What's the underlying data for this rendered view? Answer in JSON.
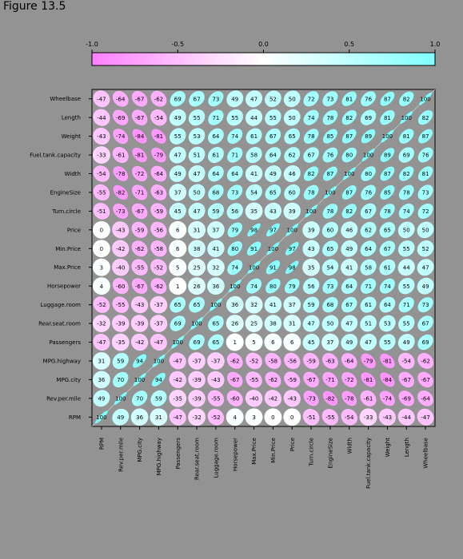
{
  "figure_title": "Figure 13.5",
  "colors": {
    "negative": "#ff80ff",
    "neutral": "#ffffff",
    "positive": "#80ffff",
    "background": "#939393"
  },
  "chart_data": {
    "type": "heatmap",
    "title": "",
    "colorkey": {
      "min": -1.0,
      "max": 1.0,
      "ticks": [
        "-1.0",
        "-0.5",
        "0.0",
        "0.5",
        "1.0"
      ]
    },
    "variables": [
      "RPM",
      "Rev.per.mile",
      "MPG.city",
      "MPG.highway",
      "Passengers",
      "Rear.seat.room",
      "Luggage.room",
      "Horsepower",
      "Max.Price",
      "Min.Price",
      "Price",
      "Turn.circle",
      "EngineSize",
      "Width",
      "Fuel.tank.capacity",
      "Weight",
      "Length",
      "Wheelbase"
    ],
    "rows": [
      "Wheelbase",
      "Length",
      "Weight",
      "Fuel.tank.capacity",
      "Width",
      "EngineSize",
      "Turn.circle",
      "Price",
      "Min.Price",
      "Max.Price",
      "Horsepower",
      "Luggage.room",
      "Rear.seat.room",
      "Passengers",
      "MPG.highway",
      "MPG.city",
      "Rev.per.mile",
      "RPM"
    ],
    "values": [
      [
        -47,
        -64,
        -67,
        -62,
        69,
        67,
        73,
        49,
        47,
        52,
        50,
        72,
        73,
        81,
        76,
        87,
        82,
        100
      ],
      [
        -44,
        -69,
        -67,
        -54,
        49,
        55,
        71,
        55,
        44,
        55,
        50,
        74,
        78,
        82,
        69,
        81,
        100,
        82
      ],
      [
        -43,
        -74,
        -84,
        -81,
        55,
        53,
        64,
        74,
        61,
        67,
        65,
        78,
        85,
        87,
        89,
        100,
        81,
        87
      ],
      [
        -33,
        -61,
        -81,
        -79,
        47,
        51,
        61,
        71,
        58,
        64,
        62,
        67,
        76,
        80,
        100,
        89,
        69,
        76
      ],
      [
        -54,
        -78,
        -72,
        -64,
        49,
        47,
        64,
        64,
        41,
        49,
        46,
        82,
        87,
        100,
        80,
        87,
        82,
        81
      ],
      [
        -55,
        -82,
        -71,
        -63,
        37,
        50,
        68,
        73,
        54,
        65,
        60,
        78,
        100,
        87,
        76,
        85,
        78,
        73
      ],
      [
        -51,
        -73,
        -67,
        -59,
        45,
        47,
        59,
        56,
        35,
        43,
        39,
        100,
        78,
        82,
        67,
        78,
        74,
        72
      ],
      [
        0,
        -43,
        -59,
        -56,
        6,
        31,
        37,
        79,
        98,
        97,
        100,
        39,
        60,
        46,
        62,
        65,
        50,
        50
      ],
      [
        0,
        -42,
        -62,
        -58,
        6,
        38,
        41,
        80,
        91,
        100,
        97,
        43,
        65,
        49,
        64,
        67,
        55,
        52
      ],
      [
        3,
        -40,
        -55,
        -52,
        5,
        25,
        32,
        74,
        100,
        91,
        98,
        35,
        54,
        41,
        58,
        61,
        44,
        47
      ],
      [
        4,
        -60,
        -67,
        -62,
        1,
        26,
        36,
        100,
        74,
        80,
        79,
        56,
        73,
        64,
        71,
        74,
        55,
        49
      ],
      [
        -52,
        -55,
        -43,
        -37,
        65,
        65,
        100,
        36,
        32,
        41,
        37,
        59,
        68,
        67,
        61,
        64,
        71,
        73
      ],
      [
        -32,
        -39,
        -39,
        -37,
        69,
        100,
        65,
        26,
        25,
        38,
        31,
        47,
        50,
        47,
        51,
        53,
        55,
        67
      ],
      [
        -47,
        -35,
        -42,
        -47,
        100,
        69,
        65,
        1,
        5,
        6,
        6,
        45,
        37,
        49,
        47,
        55,
        49,
        69
      ],
      [
        31,
        59,
        94,
        100,
        -47,
        -37,
        -37,
        -62,
        -52,
        -58,
        -56,
        -59,
        -63,
        -64,
        -79,
        -81,
        -54,
        -62
      ],
      [
        36,
        70,
        100,
        94,
        -42,
        -39,
        -43,
        -67,
        -55,
        -62,
        -59,
        -67,
        -71,
        -72,
        -81,
        -84,
        -67,
        -67
      ],
      [
        49,
        100,
        70,
        59,
        -35,
        -39,
        -55,
        -60,
        -40,
        -42,
        -43,
        -73,
        -82,
        -78,
        -61,
        -74,
        -69,
        -64
      ],
      [
        100,
        49,
        36,
        31,
        -47,
        -32,
        -52,
        4,
        3,
        0,
        0,
        -51,
        -55,
        -54,
        -33,
        -43,
        -44,
        -47
      ]
    ]
  }
}
